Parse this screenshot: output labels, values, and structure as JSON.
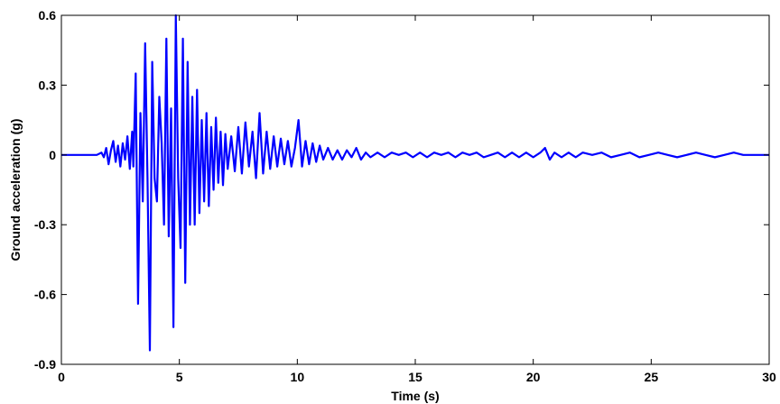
{
  "chart_data": {
    "type": "line",
    "title": "",
    "xlabel": "Time (s)",
    "ylabel": "Ground acceleration (g)",
    "xlim": [
      0,
      30
    ],
    "ylim": [
      -0.9,
      0.6
    ],
    "xticks": [
      0,
      5,
      10,
      15,
      20,
      25,
      30
    ],
    "xtick_labels": [
      "0",
      "5",
      "10",
      "15",
      "20",
      "25",
      "30"
    ],
    "yticks": [
      -0.9,
      -0.6,
      -0.3,
      0,
      0.3,
      0.6
    ],
    "ytick_labels": [
      "-0.9",
      "-0.6",
      "-0.3",
      "0",
      "0.3",
      "0.6"
    ],
    "grid": false,
    "legend": "none",
    "series": [
      {
        "color": "#0000ff",
        "x": [
          0,
          1.5,
          1.7,
          1.8,
          1.9,
          2.0,
          2.1,
          2.2,
          2.3,
          2.4,
          2.5,
          2.6,
          2.7,
          2.8,
          2.9,
          3.0,
          3.05,
          3.15,
          3.25,
          3.35,
          3.45,
          3.55,
          3.65,
          3.75,
          3.85,
          3.95,
          4.05,
          4.15,
          4.25,
          4.35,
          4.45,
          4.55,
          4.65,
          4.75,
          4.85,
          4.95,
          5.05,
          5.15,
          5.25,
          5.35,
          5.45,
          5.55,
          5.65,
          5.75,
          5.85,
          5.95,
          6.05,
          6.15,
          6.25,
          6.35,
          6.45,
          6.55,
          6.65,
          6.75,
          6.85,
          6.95,
          7.05,
          7.2,
          7.35,
          7.5,
          7.65,
          7.8,
          7.95,
          8.1,
          8.25,
          8.4,
          8.55,
          8.7,
          8.85,
          9.0,
          9.15,
          9.3,
          9.45,
          9.6,
          9.75,
          9.9,
          10.05,
          10.2,
          10.35,
          10.5,
          10.65,
          10.8,
          10.95,
          11.1,
          11.3,
          11.5,
          11.7,
          11.9,
          12.1,
          12.3,
          12.5,
          12.7,
          12.9,
          13.1,
          13.4,
          13.7,
          14.0,
          14.3,
          14.6,
          14.9,
          15.2,
          15.5,
          15.8,
          16.1,
          16.4,
          16.7,
          17.0,
          17.3,
          17.6,
          17.9,
          18.2,
          18.5,
          18.8,
          19.1,
          19.4,
          19.7,
          20.0,
          20.3,
          20.5,
          20.7,
          20.9,
          21.2,
          21.5,
          21.8,
          22.1,
          22.5,
          22.9,
          23.3,
          23.7,
          24.1,
          24.5,
          24.9,
          25.3,
          25.7,
          26.1,
          26.5,
          26.9,
          27.3,
          27.7,
          28.1,
          28.5,
          28.9,
          29.3,
          29.7,
          30
        ],
        "y": [
          0,
          0,
          0.01,
          -0.01,
          0.03,
          -0.04,
          0.02,
          0.06,
          -0.03,
          0.04,
          -0.05,
          0.05,
          -0.02,
          0.08,
          -0.06,
          0.1,
          -0.05,
          0.35,
          -0.64,
          0.18,
          -0.2,
          0.48,
          -0.1,
          -0.84,
          0.4,
          -0.1,
          -0.2,
          0.25,
          0.05,
          -0.3,
          0.5,
          -0.35,
          0.2,
          -0.74,
          0.6,
          -0.1,
          -0.4,
          0.5,
          -0.55,
          0.4,
          -0.3,
          0.25,
          -0.3,
          0.28,
          -0.25,
          0.15,
          -0.2,
          0.18,
          -0.22,
          0.12,
          -0.15,
          0.16,
          -0.12,
          0.1,
          -0.13,
          0.09,
          -0.06,
          0.08,
          -0.07,
          0.12,
          -0.08,
          0.14,
          -0.05,
          0.1,
          -0.1,
          0.18,
          -0.08,
          0.1,
          -0.06,
          0.08,
          -0.05,
          0.07,
          -0.04,
          0.06,
          -0.05,
          0.03,
          0.15,
          -0.05,
          0.06,
          -0.04,
          0.05,
          -0.03,
          0.04,
          -0.02,
          0.03,
          -0.02,
          0.02,
          -0.02,
          0.02,
          -0.01,
          0.03,
          -0.02,
          0.01,
          -0.01,
          0.01,
          -0.01,
          0.01,
          0,
          0.01,
          -0.01,
          0.01,
          -0.01,
          0.01,
          0,
          0.01,
          -0.01,
          0.01,
          0,
          0.01,
          -0.01,
          0,
          0.01,
          -0.01,
          0.01,
          -0.01,
          0.01,
          -0.01,
          0.01,
          0.03,
          -0.02,
          0.01,
          -0.01,
          0.01,
          -0.01,
          0.01,
          0,
          0.01,
          -0.01,
          0,
          0.01,
          -0.01,
          0,
          0.01,
          0,
          -0.01,
          0,
          0.01,
          0,
          -0.01,
          0,
          0.01,
          0,
          0,
          0,
          0
        ]
      }
    ]
  }
}
